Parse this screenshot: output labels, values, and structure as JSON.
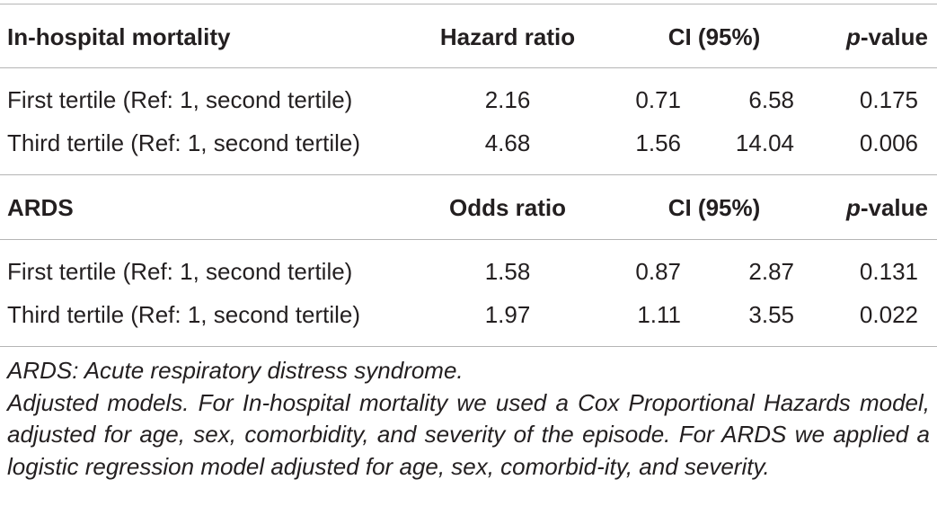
{
  "table": {
    "sections": [
      {
        "header": {
          "outcome": "In-hospital mortality",
          "ratio": "Hazard ratio",
          "ci": "CI (95%)",
          "p_italic": "p",
          "p_rest": "-value"
        },
        "rows": [
          {
            "label": "First tertile (Ref: 1, second tertile)",
            "ratio": "2.16",
            "ci_low": "0.71",
            "ci_high": "6.58",
            "p": "0.175"
          },
          {
            "label": "Third tertile (Ref: 1, second tertile)",
            "ratio": "4.68",
            "ci_low": "1.56",
            "ci_high": "14.04",
            "p": "0.006"
          }
        ]
      },
      {
        "header": {
          "outcome": "ARDS",
          "ratio": "Odds ratio",
          "ci": "CI (95%)",
          "p_italic": "p",
          "p_rest": "-value"
        },
        "rows": [
          {
            "label": "First tertile (Ref: 1, second tertile)",
            "ratio": "1.58",
            "ci_low": "0.87",
            "ci_high": "2.87",
            "p": "0.131"
          },
          {
            "label": "Third tertile (Ref: 1, second tertile)",
            "ratio": "1.97",
            "ci_low": "1.11",
            "ci_high": "3.55",
            "p": "0.022"
          }
        ]
      }
    ],
    "footnotes": {
      "abbrev": "ARDS: Acute respiratory distress syndrome.",
      "models": "Adjusted models. For In-hospital mortality we used a Cox Proportional Hazards model, adjusted for age, sex, comorbidity, and severity of the episode. For ARDS we applied a logistic regression model adjusted for age, sex, comorbid-ity, and severity."
    }
  }
}
